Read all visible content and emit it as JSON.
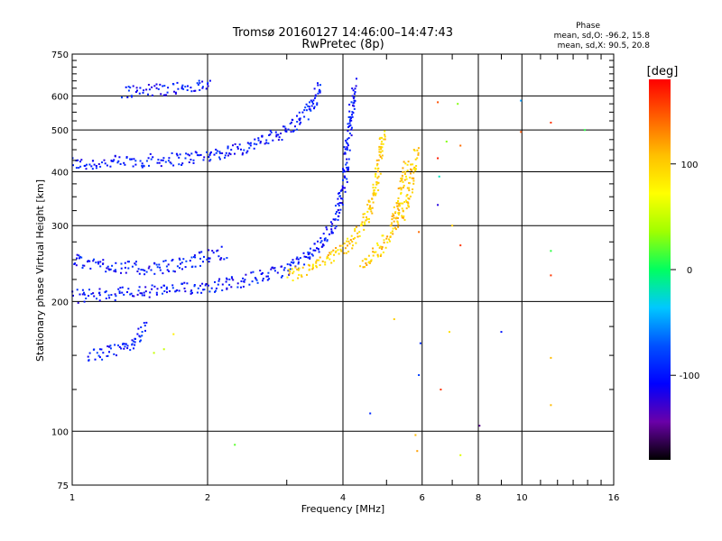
{
  "chart_data": {
    "type": "scatter",
    "title": "Tromsø 20160127 14:46:00–14:47:43",
    "subtitle": "RwPretec (8p)",
    "xlabel": "Frequency [MHz]",
    "ylabel": "Stationary phase Virtual Height [km]",
    "xscale": "log",
    "yscale": "log",
    "xlim": [
      1,
      16
    ],
    "ylim": [
      75,
      750
    ],
    "xticks": [
      1,
      2,
      4,
      6,
      8,
      10,
      16
    ],
    "xtick_labels": [
      "1",
      "2",
      "4",
      "6",
      "8",
      "10",
      "16"
    ],
    "yticks": [
      75,
      100,
      200,
      300,
      400,
      500,
      600,
      750
    ],
    "ytick_labels": [
      "75",
      "100",
      "200",
      "300",
      "400",
      "500",
      "600",
      "750"
    ],
    "grid": true,
    "stats": {
      "title": "Phase",
      "line1": "mean, sd,O: -96.2, 15.8",
      "line2": "mean, sd,X:  90.5, 20.8"
    },
    "colorbar": {
      "label": "[deg]",
      "ticks": [
        100,
        0,
        -100
      ],
      "tick_labels": [
        "100",
        "0",
        "-100"
      ],
      "range": [
        -180,
        180
      ],
      "colormap": [
        "#000000",
        "#6a00a8",
        "#0000ff",
        "#0050ff",
        "#00c8ff",
        "#00ff60",
        "#a0ff00",
        "#ffff00",
        "#ffc000",
        "#ff6000",
        "#ff0000"
      ]
    },
    "traces": [
      {
        "kind": "o_mode",
        "phase": -100,
        "points": [
          [
            1.0,
            420
          ],
          [
            1.05,
            415
          ],
          [
            1.1,
            418
          ],
          [
            1.2,
            420
          ],
          [
            1.3,
            422
          ],
          [
            1.4,
            423
          ],
          [
            1.5,
            425
          ],
          [
            1.6,
            427
          ],
          [
            1.7,
            428
          ],
          [
            1.8,
            430
          ],
          [
            1.9,
            433
          ],
          [
            2.0,
            436
          ],
          [
            2.2,
            445
          ],
          [
            2.4,
            455
          ],
          [
            2.6,
            468
          ],
          [
            2.8,
            482
          ],
          [
            3.0,
            500
          ],
          [
            3.15,
            520
          ],
          [
            3.3,
            545
          ],
          [
            3.4,
            570
          ],
          [
            3.5,
            605
          ],
          [
            3.55,
            640
          ]
        ]
      },
      {
        "kind": "o_mode",
        "phase": -100,
        "points": [
          [
            1.3,
            615
          ],
          [
            1.5,
            620
          ],
          [
            1.7,
            625
          ],
          [
            1.9,
            630
          ],
          [
            2.05,
            640
          ]
        ]
      },
      {
        "kind": "o_mode",
        "phase": -100,
        "points": [
          [
            1.0,
            205
          ],
          [
            1.1,
            207
          ],
          [
            1.2,
            208
          ],
          [
            1.4,
            210
          ],
          [
            1.6,
            212
          ],
          [
            1.8,
            214
          ],
          [
            2.0,
            217
          ],
          [
            2.2,
            220
          ],
          [
            2.4,
            224
          ],
          [
            2.6,
            228
          ],
          [
            2.8,
            232
          ],
          [
            3.0,
            238
          ],
          [
            3.2,
            246
          ],
          [
            3.4,
            258
          ],
          [
            3.6,
            275
          ],
          [
            3.8,
            300
          ],
          [
            3.95,
            340
          ],
          [
            4.05,
            400
          ],
          [
            4.1,
            460
          ],
          [
            4.15,
            520
          ],
          [
            4.2,
            580
          ],
          [
            4.25,
            640
          ]
        ]
      },
      {
        "kind": "o_mode",
        "phase": -100,
        "points": [
          [
            1.0,
            250
          ],
          [
            1.1,
            245
          ],
          [
            1.3,
            240
          ],
          [
            1.5,
            238
          ],
          [
            1.8,
            245
          ],
          [
            2.0,
            255
          ],
          [
            2.2,
            260
          ]
        ]
      },
      {
        "kind": "o_mode",
        "phase": -100,
        "points": [
          [
            1.08,
            150
          ],
          [
            1.2,
            152
          ],
          [
            1.3,
            155
          ],
          [
            1.4,
            165
          ],
          [
            1.45,
            175
          ]
        ]
      },
      {
        "kind": "x_mode",
        "phase": 100,
        "points": [
          [
            3.0,
            228
          ],
          [
            3.3,
            236
          ],
          [
            3.6,
            246
          ],
          [
            3.9,
            260
          ],
          [
            4.2,
            276
          ],
          [
            4.4,
            296
          ],
          [
            4.6,
            330
          ],
          [
            4.75,
            380
          ],
          [
            4.85,
            440
          ],
          [
            4.92,
            500
          ]
        ]
      },
      {
        "kind": "x_mode",
        "phase": 100,
        "points": [
          [
            4.4,
            240
          ],
          [
            4.8,
            262
          ],
          [
            5.1,
            290
          ],
          [
            5.3,
            330
          ],
          [
            5.45,
            380
          ],
          [
            5.55,
            420
          ]
        ]
      },
      {
        "kind": "x_mode",
        "phase": 100,
        "points": [
          [
            5.3,
            300
          ],
          [
            5.5,
            330
          ],
          [
            5.65,
            370
          ],
          [
            5.75,
            410
          ],
          [
            5.82,
            450
          ]
        ]
      }
    ],
    "sparse_points": [
      {
        "x": 1.52,
        "y": 152,
        "phase": 50
      },
      {
        "x": 1.6,
        "y": 155,
        "phase": 50
      },
      {
        "x": 1.68,
        "y": 168,
        "phase": 80
      },
      {
        "x": 2.3,
        "y": 93,
        "phase": 20
      },
      {
        "x": 4.6,
        "y": 110,
        "phase": -90
      },
      {
        "x": 5.2,
        "y": 182,
        "phase": 100
      },
      {
        "x": 5.8,
        "y": 98,
        "phase": 110
      },
      {
        "x": 5.85,
        "y": 90,
        "phase": 120
      },
      {
        "x": 5.9,
        "y": 135,
        "phase": -80
      },
      {
        "x": 5.95,
        "y": 160,
        "phase": -90
      },
      {
        "x": 5.9,
        "y": 290,
        "phase": 140
      },
      {
        "x": 6.5,
        "y": 580,
        "phase": 150
      },
      {
        "x": 6.5,
        "y": 430,
        "phase": 170
      },
      {
        "x": 6.55,
        "y": 390,
        "phase": -20
      },
      {
        "x": 6.5,
        "y": 335,
        "phase": -120
      },
      {
        "x": 6.6,
        "y": 125,
        "phase": 160
      },
      {
        "x": 6.8,
        "y": 470,
        "phase": 30
      },
      {
        "x": 6.9,
        "y": 170,
        "phase": 90
      },
      {
        "x": 7.0,
        "y": 300,
        "phase": 100
      },
      {
        "x": 7.2,
        "y": 575,
        "phase": 30
      },
      {
        "x": 7.3,
        "y": 460,
        "phase": 140
      },
      {
        "x": 7.3,
        "y": 270,
        "phase": 160
      },
      {
        "x": 7.3,
        "y": 88,
        "phase": 60
      },
      {
        "x": 8.05,
        "y": 103,
        "phase": -150
      },
      {
        "x": 9.0,
        "y": 170,
        "phase": -100
      },
      {
        "x": 9.95,
        "y": 585,
        "phase": -50
      },
      {
        "x": 9.95,
        "y": 495,
        "phase": 150
      },
      {
        "x": 11.6,
        "y": 520,
        "phase": 160
      },
      {
        "x": 11.6,
        "y": 262,
        "phase": 10
      },
      {
        "x": 11.6,
        "y": 230,
        "phase": 160
      },
      {
        "x": 11.6,
        "y": 148,
        "phase": 110
      },
      {
        "x": 11.6,
        "y": 115,
        "phase": 110
      },
      {
        "x": 13.8,
        "y": 500,
        "phase": 10
      }
    ]
  }
}
